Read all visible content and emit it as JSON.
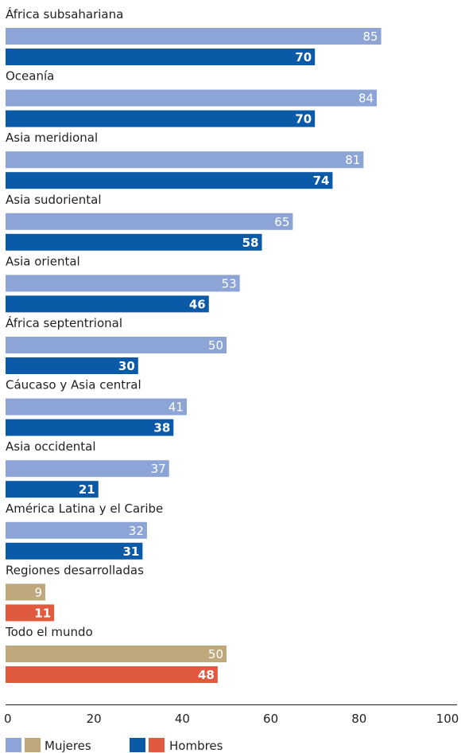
{
  "chart_data": {
    "type": "bar",
    "orientation": "horizontal",
    "xlim": [
      0,
      100
    ],
    "x_ticks": [
      "0",
      "20",
      "40",
      "60",
      "80",
      "100"
    ],
    "grid": false,
    "legend_position": "bottom-left",
    "categories": [
      "África subsahariana",
      "Oceanía",
      "Asia meridional",
      "Asia sudoriental",
      "Asia oriental",
      "África septentrional",
      "Cáucaso y Asia central",
      "Asia occidental",
      "América Latina y el Caribe",
      "Regiones desarrolladas",
      "Todo el mundo"
    ],
    "series": [
      {
        "name": "Mujeres",
        "values": [
          85,
          84,
          81,
          65,
          53,
          50,
          41,
          37,
          32,
          9,
          50
        ]
      },
      {
        "name": "Hombres",
        "values": [
          70,
          70,
          74,
          58,
          46,
          30,
          38,
          21,
          31,
          11,
          48
        ]
      }
    ],
    "colors": {
      "mujeres_regional": "#8ca5d6",
      "hombres_regional": "#0b5aa8",
      "mujeres_agregado": "#bfa97c",
      "hombres_agregado": "#e05a40"
    },
    "aggregate_categories": [
      "Regiones desarrolladas",
      "Todo el mundo"
    ]
  }
}
